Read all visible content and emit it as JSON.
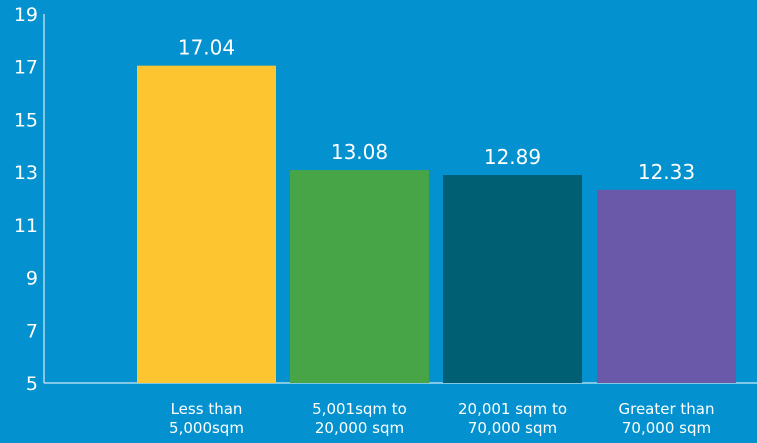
{
  "chart_data": {
    "type": "bar",
    "categories": [
      [
        "Less than",
        "5,000sqm"
      ],
      [
        "5,001sqm to",
        "20,000 sqm"
      ],
      [
        "20,001 sqm to",
        "70,000 sqm"
      ],
      [
        "Greater than",
        "70,000 sqm"
      ]
    ],
    "values": [
      17.04,
      13.08,
      12.89,
      12.33
    ],
    "value_labels": [
      "17.04",
      "13.08",
      "12.89",
      "12.33"
    ],
    "bar_colors": [
      "#fdc52f",
      "#47a447",
      "#005f73",
      "#6959a8"
    ],
    "ylim": [
      5,
      19
    ],
    "yticks": [
      5,
      7,
      9,
      11,
      13,
      15,
      17,
      19
    ],
    "grid": false,
    "background": "#0392cf",
    "axis_color": "#ffffff"
  }
}
